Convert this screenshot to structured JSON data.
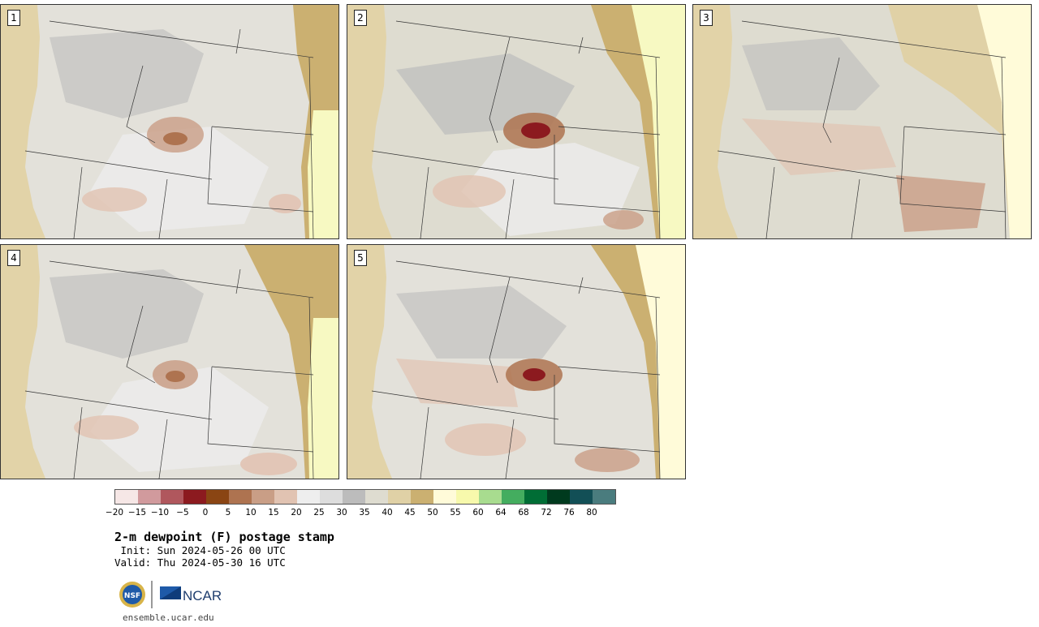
{
  "panels": [
    {
      "label": "1"
    },
    {
      "label": "2"
    },
    {
      "label": "3"
    },
    {
      "label": "4"
    },
    {
      "label": "5"
    }
  ],
  "colorbar": {
    "ticks": [
      "−20",
      "−15",
      "−10",
      "−5",
      "0",
      "5",
      "10",
      "15",
      "20",
      "25",
      "30",
      "35",
      "40",
      "45",
      "50",
      "55",
      "60",
      "64",
      "68",
      "72",
      "76",
      "80"
    ],
    "colors": [
      "#f6e7e6",
      "#d19a9d",
      "#b0575d",
      "#8c1a1f",
      "#8a4513",
      "#ae7350",
      "#c99e86",
      "#e1c3b2",
      "#eeeeee",
      "#dddddd",
      "#bcbcbc",
      "#dedcd0",
      "#e0d1a6",
      "#cbb071",
      "#fffbd9",
      "#f7f9ac",
      "#a8dc8f",
      "#44ad5f",
      "#006d35",
      "#003a1e",
      "#124f56",
      "#4a7c7e"
    ]
  },
  "title": "2-m dewpoint (F) postage stamp",
  "init": " Init: Sun 2024-05-26 00 UTC",
  "valid": "Valid: Thu 2024-05-30 16 UTC",
  "logo": {
    "nsf": "NSF",
    "ncar": "NCAR"
  },
  "site": "ensemble.ucar.edu"
}
